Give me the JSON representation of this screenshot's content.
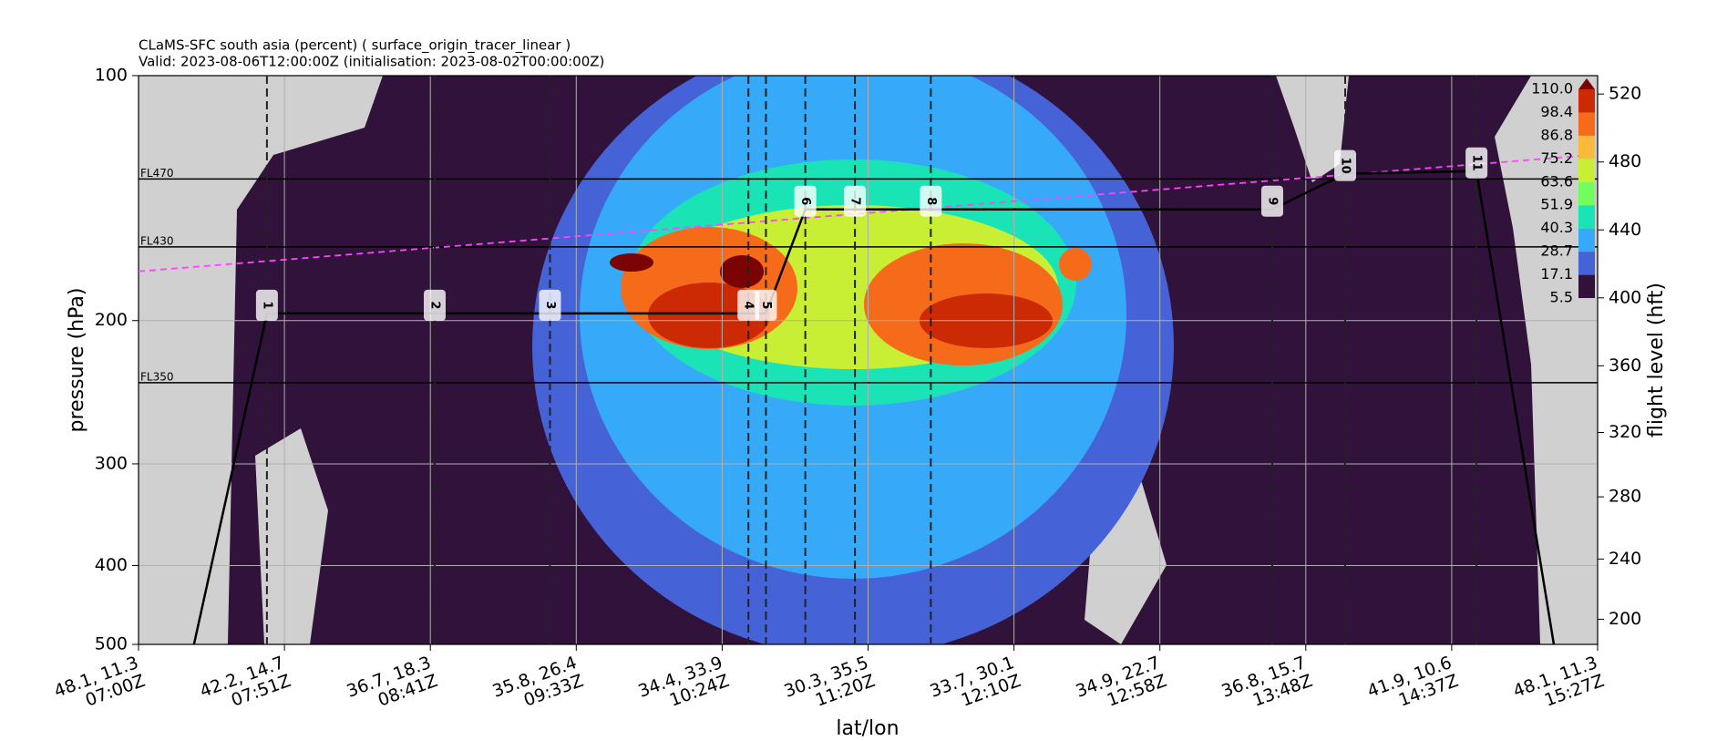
{
  "chart_data": {
    "type": "cross-section",
    "title": "CLaMS-SFC south asia (percent) ( surface_origin_tracer_linear )",
    "subtitle": "Valid: 2023-08-06T12:00:00Z (initialisation: 2023-08-02T00:00:00Z)",
    "xlabel": "lat/lon",
    "ylabel": "pressure (hPa)",
    "y2label": "flight level (hft)",
    "xlim": [
      0,
      10
    ],
    "xticks": [
      {
        "value": 0,
        "label": "48.1, 11.3\n07:00Z"
      },
      {
        "value": 1,
        "label": "42.2, 14.7\n07:51Z"
      },
      {
        "value": 2,
        "label": "36.7, 18.3\n08:41Z"
      },
      {
        "value": 3,
        "label": "35.8, 26.4\n09:33Z"
      },
      {
        "value": 4,
        "label": "34.4, 33.9\n10:24Z"
      },
      {
        "value": 5,
        "label": "30.3, 35.5\n11:20Z"
      },
      {
        "value": 6,
        "label": "33.7, 30.1\n12:10Z"
      },
      {
        "value": 7,
        "label": "34.9, 22.7\n12:58Z"
      },
      {
        "value": 8,
        "label": "36.8, 15.7\n13:48Z"
      },
      {
        "value": 9,
        "label": "41.9, 10.6\n14:37Z"
      },
      {
        "value": 10,
        "label": "48.1, 11.3\n15:27Z"
      }
    ],
    "ylim": [
      100,
      500
    ],
    "yticks": [
      100,
      200,
      300,
      400,
      500
    ],
    "log_scale": true,
    "grid": true,
    "y2lim": [
      183,
      531
    ],
    "y2ticks": [
      200,
      240,
      280,
      320,
      360,
      400,
      440,
      480,
      520
    ],
    "flight_levels": [
      {
        "value": 470,
        "label": "FL470"
      },
      {
        "value": 430,
        "label": "FL430"
      },
      {
        "value": 350,
        "label": "FL350"
      }
    ],
    "waypoints": {
      "labels": [
        "1",
        "2",
        "3",
        "4",
        "5",
        "6",
        "7",
        "8",
        "9",
        "10",
        "11"
      ],
      "x": [
        0.88,
        2.03,
        2.82,
        4.18,
        4.3,
        4.57,
        4.91,
        5.43,
        7.77,
        8.27,
        9.17
      ],
      "pressure": [
        196,
        196,
        196,
        196,
        196,
        146,
        146,
        146,
        146,
        132,
        131
      ]
    },
    "flight_path": {
      "color": "#000000",
      "x": [
        0.38,
        0.88,
        2.03,
        2.82,
        4.18,
        4.3,
        4.57,
        4.91,
        5.43,
        7.77,
        8.27,
        9.17,
        9.7
      ],
      "pressure": [
        500,
        196,
        196,
        196,
        196,
        196,
        146,
        146,
        146,
        146,
        132,
        131,
        500
      ]
    },
    "tropopause": {
      "color": "#ff44ff",
      "x": [
        0,
        10
      ],
      "pressure": [
        174,
        125
      ]
    },
    "colorbar": {
      "levels": [
        5.5,
        17.1,
        28.7,
        40.3,
        51.9,
        63.6,
        75.2,
        86.8,
        98.4,
        {
          "value": 110,
          "label": "110.0"
        }
      ],
      "colors": [
        "#30123b",
        "#4662d7",
        "#36aaf9",
        "#1ae4b6",
        "#72fe5e",
        "#c8ef34",
        "#faba39",
        "#f66b19",
        "#cb2a04"
      ],
      "under": "#d0d0d0",
      "over": "#7a0403"
    }
  }
}
